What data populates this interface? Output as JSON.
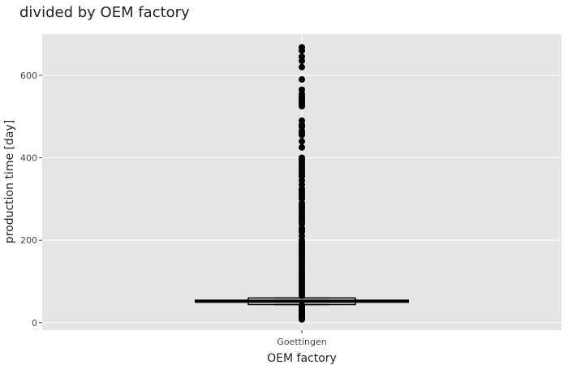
{
  "chart_data": {
    "type": "box",
    "title": "divided by OEM factory",
    "xlabel": "OEM factory",
    "ylabel": "production time [day]",
    "categories": [
      "Goettingen"
    ],
    "ylim": [
      -18,
      700
    ],
    "yticks": [
      0,
      200,
      400,
      600
    ],
    "grid": true,
    "colors": {
      "panel": "#e5e5e5",
      "grid": "#ffffff",
      "marks": "#000000"
    },
    "boxes": [
      {
        "category": "Goettingen",
        "q1": 44,
        "median": 52,
        "q3": 60,
        "whisker_low": 44,
        "whisker_high": 60,
        "mean": 52,
        "outliers": [
          8,
          10,
          12,
          14,
          16,
          18,
          20,
          22,
          24,
          26,
          28,
          30,
          33,
          36,
          38,
          40,
          42,
          65,
          70,
          75,
          80,
          85,
          90,
          95,
          100,
          105,
          110,
          115,
          120,
          125,
          130,
          135,
          140,
          145,
          150,
          155,
          160,
          165,
          170,
          175,
          180,
          185,
          190,
          195,
          200,
          210,
          220,
          225,
          230,
          240,
          245,
          250,
          255,
          260,
          265,
          270,
          275,
          280,
          285,
          290,
          300,
          305,
          310,
          315,
          320,
          325,
          335,
          345,
          355,
          360,
          365,
          370,
          375,
          380,
          385,
          390,
          395,
          400,
          425,
          440,
          455,
          460,
          465,
          475,
          480,
          490,
          525,
          530,
          535,
          540,
          545,
          550,
          555,
          565,
          590,
          620,
          635,
          645,
          660,
          668
        ]
      }
    ]
  }
}
